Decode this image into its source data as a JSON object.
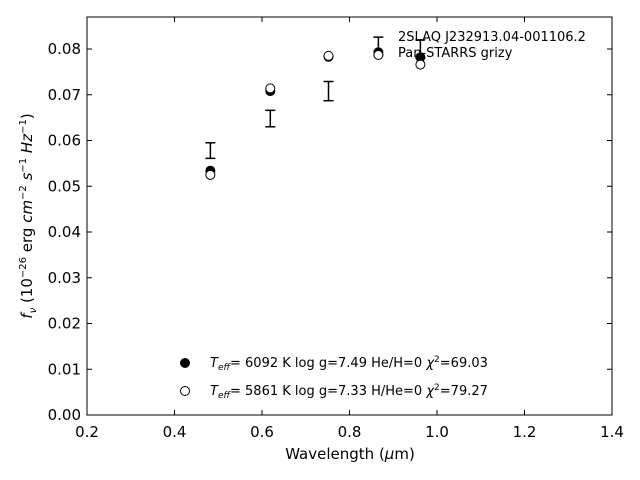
{
  "chart_data": {
    "type": "scatter",
    "title": "",
    "xlabel": "Wavelength (μm)",
    "ylabel": "fν (10⁻²⁶ erg cm⁻² s⁻¹ Hz⁻¹)",
    "xlim": [
      0.2,
      1.4
    ],
    "ylim": [
      0.0,
      0.087
    ],
    "xticks": [
      0.2,
      0.4,
      0.6,
      0.8,
      1.0,
      1.2,
      1.4
    ],
    "xtick_labels": [
      "0.2",
      "0.4",
      "0.6",
      "0.8",
      "1.0",
      "1.2",
      "1.4"
    ],
    "yticks": [
      0.0,
      0.01,
      0.02,
      0.03,
      0.04,
      0.05,
      0.06,
      0.07,
      0.08
    ],
    "ytick_labels": [
      "0.00",
      "0.01",
      "0.02",
      "0.03",
      "0.04",
      "0.05",
      "0.06",
      "0.07",
      "0.08"
    ],
    "grid": false,
    "annotation": {
      "line1": "2SLAQ J232913.04-001106.2",
      "line2": "Pan-STARRS grizy"
    },
    "observed": {
      "x": [
        0.482,
        0.619,
        0.752,
        0.866,
        0.962
      ],
      "y": [
        0.0578,
        0.0648,
        0.0708,
        0.0806,
        0.08
      ],
      "yerr": [
        0.0017,
        0.0018,
        0.0021,
        0.002,
        0.002
      ]
    },
    "series": [
      {
        "marker": "filled-circle",
        "legend": {
          "teff": "6092 K",
          "logg": "log g=7.49",
          "comp": "He/H=0",
          "chi2": "=69.03"
        },
        "x": [
          0.482,
          0.619,
          0.752,
          0.866,
          0.962
        ],
        "y": [
          0.0534,
          0.0708,
          0.0783,
          0.0793,
          0.0782
        ]
      },
      {
        "marker": "open-circle",
        "legend": {
          "teff": "5861 K",
          "logg": "log g=7.33",
          "comp": "H/He=0",
          "chi2": "=79.27"
        },
        "x": [
          0.482,
          0.619,
          0.752,
          0.866,
          0.962
        ],
        "y": [
          0.0525,
          0.0714,
          0.0785,
          0.0787,
          0.0766
        ]
      }
    ]
  }
}
